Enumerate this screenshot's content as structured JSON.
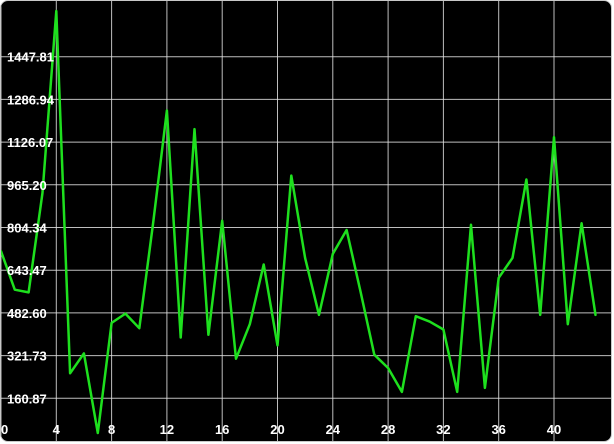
{
  "chart_data": {
    "type": "line",
    "title": "",
    "xlabel": "",
    "ylabel": "",
    "xlim": [
      0,
      43
    ],
    "ylim": [
      0,
      1600
    ],
    "x_ticks": [
      0,
      4,
      8,
      12,
      16,
      20,
      24,
      28,
      32,
      36,
      40
    ],
    "x_tick_labels": [
      "0",
      "4",
      "8",
      "12",
      "16",
      "20",
      "24",
      "28",
      "32",
      "36",
      "40"
    ],
    "y_ticks": [
      160.87,
      321.73,
      482.6,
      643.47,
      804.34,
      965.2,
      1126.07,
      1286.94,
      1447.81
    ],
    "y_tick_labels": [
      "160.87",
      "321.73",
      "482.60",
      "643.47",
      "804.34",
      "965.20",
      "1126.07",
      "1286.94",
      "1447.81"
    ],
    "grid": true,
    "line_color": "#1ee01e",
    "background_color": "#000000",
    "grid_color": "#e0e0e0",
    "series": [
      {
        "x": [
          0,
          1,
          2,
          3,
          4,
          5,
          6,
          7,
          8,
          9,
          10,
          11,
          12,
          13,
          14,
          15,
          16,
          17,
          18,
          19,
          20,
          21,
          22,
          23,
          24,
          25,
          26,
          27,
          28,
          29,
          30,
          31,
          32,
          33,
          34,
          35,
          36,
          37,
          38,
          39,
          40,
          41,
          42,
          43
        ],
        "values": [
          715,
          570,
          560,
          935,
          1620,
          255,
          330,
          30,
          445,
          480,
          425,
          820,
          1245,
          390,
          1175,
          400,
          830,
          310,
          440,
          665,
          360,
          1000,
          690,
          475,
          705,
          795,
          565,
          325,
          275,
          185,
          470,
          450,
          420,
          185,
          815,
          200,
          615,
          690,
          985,
          475,
          1145,
          440,
          820,
          475
        ]
      }
    ]
  }
}
